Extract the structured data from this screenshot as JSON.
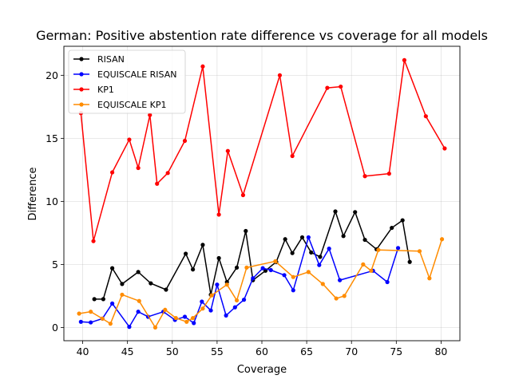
{
  "chart_data": {
    "type": "line",
    "title": "German: Positive abstention rate difference vs coverage for all models",
    "xlabel": "Coverage",
    "ylabel": "Difference",
    "xlim": [
      37.9,
      82.1
    ],
    "ylim": [
      -1.05,
      22.3
    ],
    "xticks": [
      40,
      45,
      50,
      55,
      60,
      65,
      70,
      75,
      80
    ],
    "yticks": [
      0,
      5,
      10,
      15,
      20
    ],
    "grid": true,
    "legend_position": "top-left",
    "series": [
      {
        "name": "RISAN",
        "color": "#000000",
        "x": [
          41.3,
          42.3,
          43.3,
          44.4,
          46.2,
          47.6,
          49.3,
          51.5,
          52.3,
          53.4,
          54.3,
          55.2,
          56.1,
          57.2,
          58.2,
          59.0,
          60.4,
          61.6,
          62.6,
          63.4,
          64.5,
          65.5,
          66.5,
          68.2,
          69.1,
          70.4,
          71.5,
          72.8,
          74.5,
          75.7,
          76.5
        ],
        "y": [
          2.25,
          2.25,
          4.7,
          3.45,
          4.4,
          3.5,
          3.0,
          5.85,
          4.6,
          6.55,
          2.6,
          5.5,
          3.6,
          4.75,
          7.65,
          3.75,
          4.5,
          5.2,
          7.0,
          5.9,
          7.15,
          5.95,
          5.6,
          9.2,
          7.25,
          9.15,
          6.95,
          6.2,
          7.9,
          8.5,
          5.2
        ]
      },
      {
        "name": "EQUISCALE RISAN",
        "color": "#0000ff",
        "x": [
          39.8,
          40.9,
          42.2,
          43.3,
          45.2,
          46.2,
          47.3,
          49.0,
          50.3,
          51.4,
          52.4,
          53.3,
          54.3,
          55.0,
          56.0,
          57.0,
          58.0,
          59.0,
          60.1,
          61.0,
          62.5,
          63.5,
          65.2,
          66.4,
          67.5,
          68.7,
          72.4,
          74.0,
          75.2
        ],
        "y": [
          0.45,
          0.4,
          0.7,
          1.9,
          0.05,
          1.25,
          0.85,
          1.25,
          0.6,
          0.85,
          0.35,
          2.05,
          1.35,
          3.4,
          0.95,
          1.6,
          2.2,
          3.9,
          4.7,
          4.55,
          4.15,
          2.95,
          7.15,
          4.95,
          6.25,
          3.75,
          4.5,
          3.6,
          6.3
        ]
      },
      {
        "name": "KP1",
        "color": "#ff0000",
        "x": [
          39.8,
          41.2,
          43.3,
          45.2,
          46.2,
          47.5,
          48.3,
          49.5,
          51.4,
          53.4,
          55.2,
          56.2,
          57.9,
          62.0,
          63.4,
          67.3,
          68.8,
          71.5,
          74.2,
          75.9,
          78.3,
          80.4
        ],
        "y": [
          17.0,
          6.85,
          12.3,
          14.9,
          12.65,
          16.85,
          11.4,
          12.25,
          14.8,
          20.7,
          8.95,
          14.0,
          10.5,
          20.0,
          13.6,
          19.0,
          19.1,
          12.0,
          12.2,
          21.2,
          16.75,
          14.2
        ]
      },
      {
        "name": "EQUISCALE KP1",
        "color": "#ff8c00",
        "x": [
          39.6,
          40.9,
          42.2,
          43.1,
          44.4,
          46.3,
          48.1,
          49.2,
          50.4,
          51.6,
          52.3,
          53.4,
          54.4,
          56.1,
          57.2,
          58.3,
          61.5,
          63.5,
          65.2,
          66.8,
          68.3,
          69.2,
          71.3,
          72.2,
          73.0,
          77.6,
          78.7,
          80.1
        ],
        "y": [
          1.1,
          1.25,
          0.7,
          0.3,
          2.6,
          2.1,
          0.0,
          1.4,
          0.75,
          0.45,
          0.75,
          1.5,
          2.55,
          3.4,
          2.15,
          4.75,
          5.25,
          4.0,
          4.4,
          3.45,
          2.3,
          2.5,
          5.0,
          4.5,
          6.15,
          6.05,
          3.9,
          7.0
        ]
      }
    ]
  }
}
